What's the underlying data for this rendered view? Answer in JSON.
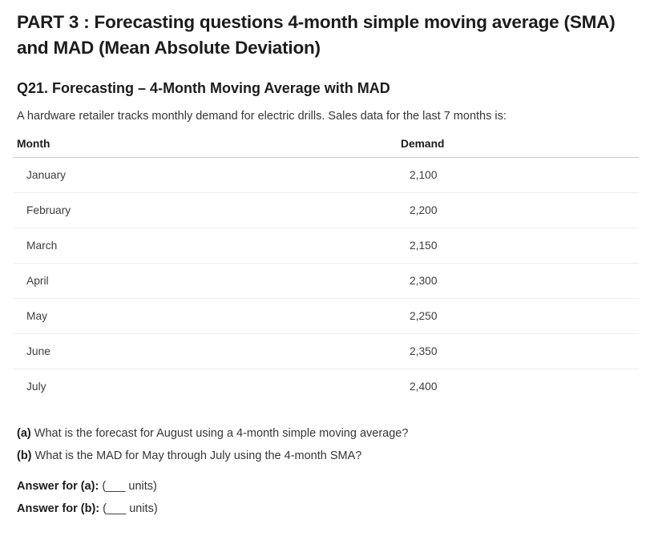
{
  "page": {
    "title": "PART 3 : Forecasting questions 4-month simple moving average (SMA) and MAD (Mean Absolute Deviation)",
    "question_heading": "Q21. Forecasting – 4-Month Moving Average with MAD",
    "intro": "A hardware retailer tracks monthly demand for electric drills. Sales data for the last 7 months is:"
  },
  "table": {
    "columns": [
      "Month",
      "Demand"
    ],
    "rows": [
      {
        "month": "January",
        "demand": "2,100"
      },
      {
        "month": "February",
        "demand": "2,200"
      },
      {
        "month": "March",
        "demand": "2,150"
      },
      {
        "month": "April",
        "demand": "2,300"
      },
      {
        "month": "May",
        "demand": "2,250"
      },
      {
        "month": "June",
        "demand": "2,350"
      },
      {
        "month": "July",
        "demand": "2,400"
      }
    ]
  },
  "questions": [
    {
      "label": "(a)",
      "text": "What is the forecast for August using a 4-month simple moving average?"
    },
    {
      "label": "(b)",
      "text": "What is the MAD for May through July using the 4-month SMA?"
    }
  ],
  "answers": [
    {
      "label": "Answer for (a):",
      "value": "(___ units)"
    },
    {
      "label": "Answer for (b):",
      "value": "(___ units)"
    }
  ],
  "colors": {
    "text_primary": "#1c1c1c",
    "text_body": "#363636",
    "table_header_rule": "#c9c9c9",
    "table_row_rule": "#ededed",
    "background": "#ffffff"
  }
}
